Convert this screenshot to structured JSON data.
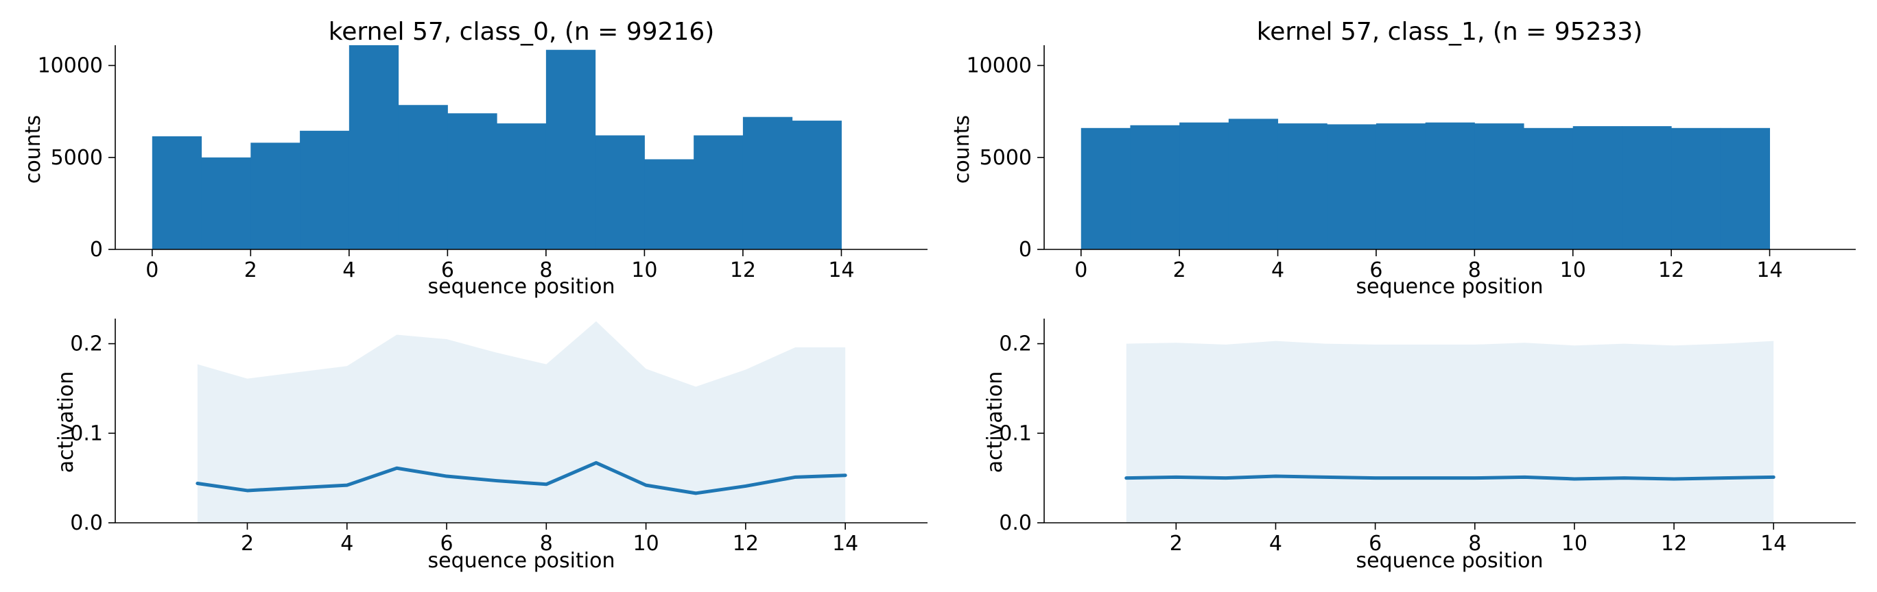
{
  "colors": {
    "bar": "#1f77b4",
    "line": "#1f77b4",
    "band": "#1f77b4",
    "band_opacity": 0.1,
    "axis": "#000000"
  },
  "chart_data": [
    {
      "type": "bar",
      "subtype": "histogram",
      "title": "kernel 57, class_0, (n = 99216)",
      "xlabel": "sequence position",
      "ylabel": "counts",
      "xlim": [
        -0.75,
        15.75
      ],
      "ylim": [
        0,
        11100
      ],
      "xticks": [
        0,
        2,
        4,
        6,
        8,
        10,
        12,
        14
      ],
      "yticks": [
        0,
        5000,
        10000
      ],
      "bin_edges": [
        0,
        1,
        2,
        3,
        4,
        5,
        6,
        7,
        8,
        9,
        10,
        11,
        12,
        13,
        14
      ],
      "values": [
        6150,
        5000,
        5800,
        6450,
        11100,
        7850,
        7400,
        6850,
        10850,
        6200,
        4900,
        6200,
        7200,
        7000
      ],
      "grid": false,
      "legend": "none"
    },
    {
      "type": "bar",
      "subtype": "histogram",
      "title": "kernel 57, class_1, (n = 95233)",
      "xlabel": "sequence position",
      "ylabel": "counts",
      "xlim": [
        -0.75,
        15.75
      ],
      "ylim": [
        0,
        11100
      ],
      "xticks": [
        0,
        2,
        4,
        6,
        8,
        10,
        12,
        14
      ],
      "yticks": [
        0,
        5000,
        10000
      ],
      "bin_edges": [
        0,
        1,
        2,
        3,
        4,
        5,
        6,
        7,
        8,
        9,
        10,
        11,
        12,
        13,
        14
      ],
      "values": [
        6600,
        6750,
        6900,
        7100,
        6850,
        6800,
        6850,
        6900,
        6850,
        6600,
        6700,
        6700,
        6600,
        6600
      ],
      "grid": false,
      "legend": "none"
    },
    {
      "type": "line",
      "subtype": "mean with shaded upper band",
      "title": "",
      "xlabel": "sequence position",
      "ylabel": "activation",
      "xlim": [
        -0.65,
        15.65
      ],
      "ylim": [
        0,
        0.228
      ],
      "xticks": [
        2,
        4,
        6,
        8,
        10,
        12,
        14
      ],
      "yticks": [
        0.0,
        0.1,
        0.2
      ],
      "ytick_labels": [
        "0.0",
        "0.1",
        "0.2"
      ],
      "x": [
        1,
        2,
        3,
        4,
        5,
        6,
        7,
        8,
        9,
        10,
        11,
        12,
        13,
        14
      ],
      "mean": [
        0.044,
        0.036,
        0.039,
        0.042,
        0.061,
        0.052,
        0.047,
        0.043,
        0.067,
        0.042,
        0.033,
        0.041,
        0.051,
        0.053
      ],
      "band_upper": [
        0.177,
        0.161,
        0.168,
        0.175,
        0.21,
        0.205,
        0.19,
        0.177,
        0.225,
        0.172,
        0.152,
        0.171,
        0.196,
        0.196
      ],
      "band_lower": [
        0,
        0,
        0,
        0,
        0,
        0,
        0,
        0,
        0,
        0,
        0,
        0,
        0,
        0
      ],
      "grid": false,
      "legend": "none"
    },
    {
      "type": "line",
      "subtype": "mean with shaded upper band",
      "title": "",
      "xlabel": "sequence position",
      "ylabel": "activation",
      "xlim": [
        -0.65,
        15.65
      ],
      "ylim": [
        0,
        0.228
      ],
      "xticks": [
        2,
        4,
        6,
        8,
        10,
        12,
        14
      ],
      "yticks": [
        0.0,
        0.1,
        0.2
      ],
      "ytick_labels": [
        "0.0",
        "0.1",
        "0.2"
      ],
      "x": [
        1,
        2,
        3,
        4,
        5,
        6,
        7,
        8,
        9,
        10,
        11,
        12,
        13,
        14
      ],
      "mean": [
        0.05,
        0.051,
        0.05,
        0.052,
        0.051,
        0.05,
        0.05,
        0.05,
        0.051,
        0.049,
        0.05,
        0.049,
        0.05,
        0.051
      ],
      "band_upper": [
        0.2,
        0.201,
        0.199,
        0.203,
        0.2,
        0.199,
        0.199,
        0.199,
        0.201,
        0.198,
        0.2,
        0.198,
        0.2,
        0.203
      ],
      "band_lower": [
        0,
        0,
        0,
        0,
        0,
        0,
        0,
        0,
        0,
        0,
        0,
        0,
        0,
        0
      ],
      "grid": false,
      "legend": "none"
    }
  ]
}
